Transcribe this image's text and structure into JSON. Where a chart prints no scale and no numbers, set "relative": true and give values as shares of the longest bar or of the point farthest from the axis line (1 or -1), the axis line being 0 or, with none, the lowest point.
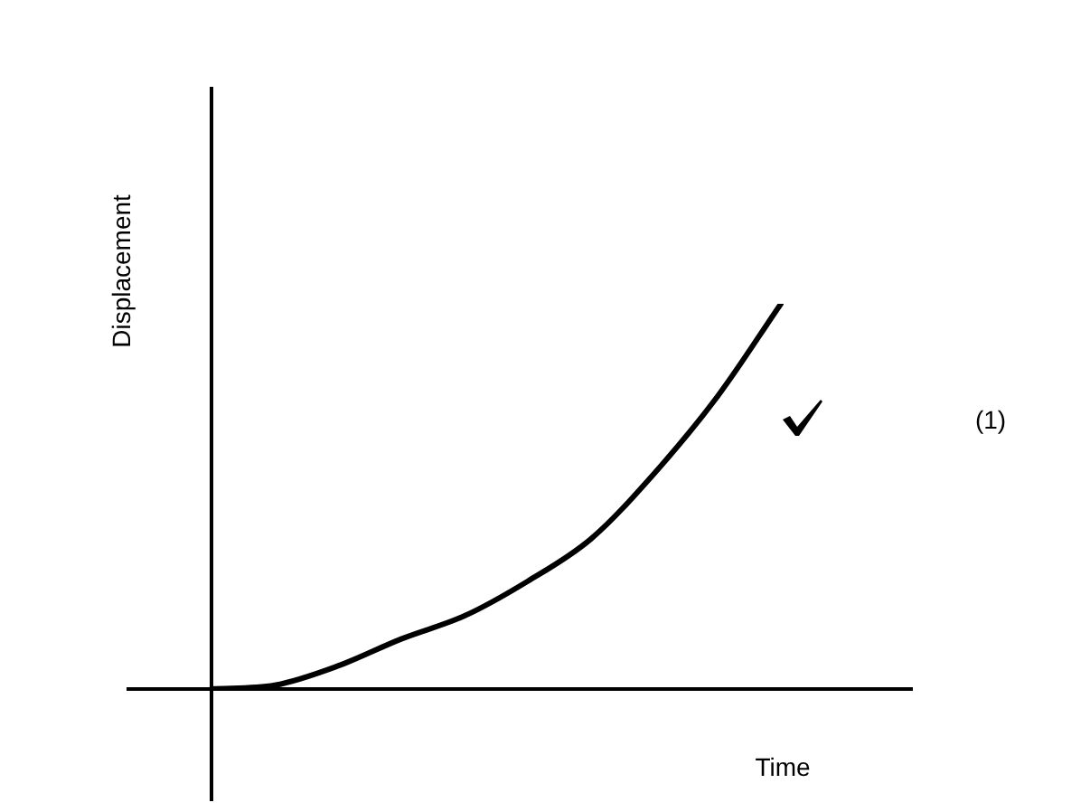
{
  "chart_data": {
    "type": "line",
    "relative": true,
    "xlabel": "Time",
    "ylabel": "Displacement",
    "annotations": [
      "(1)"
    ],
    "categories": [
      null,
      null,
      null,
      null,
      null,
      null,
      null,
      null,
      null,
      null
    ],
    "series": [
      {
        "color": "#000000",
        "values": [
          0,
          0.01,
          0.06,
          0.13,
          0.19,
          0.28,
          0.39,
          0.56,
          0.76,
          1
        ]
      }
    ],
    "legend": false,
    "marker": "none"
  }
}
